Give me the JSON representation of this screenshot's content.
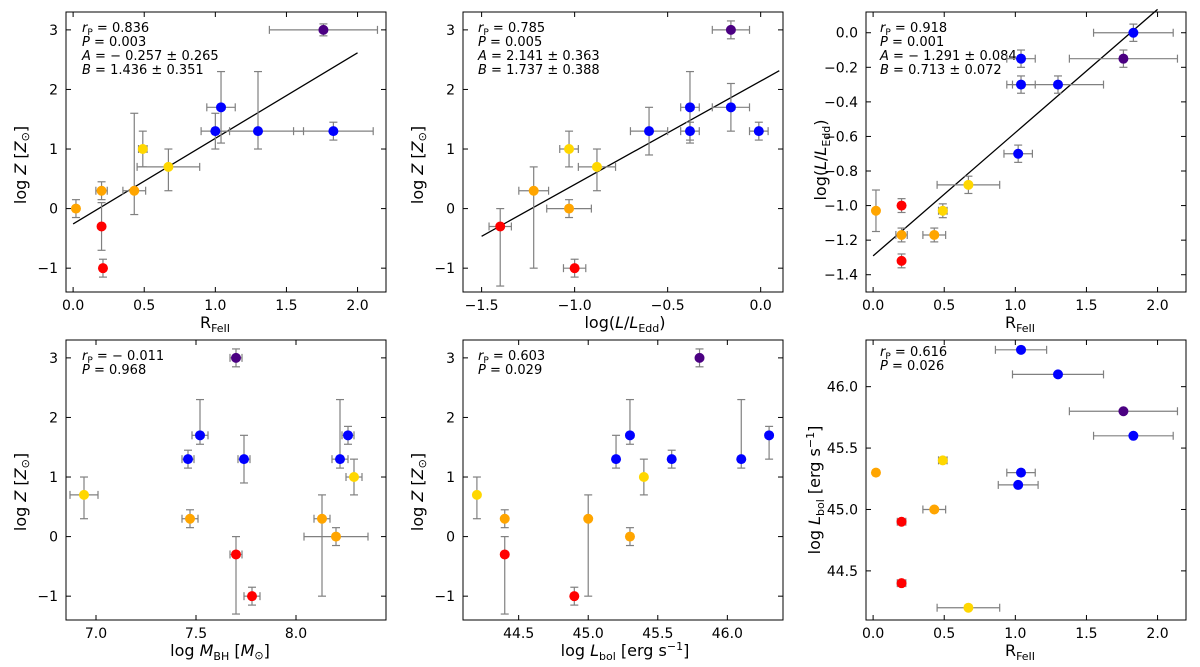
{
  "colors": {
    "purple": "#4b0082",
    "blue": "#0000ff",
    "yellow": "#ffd700",
    "orange": "#ffa500",
    "red": "#ff0000",
    "errorbar": "#808080",
    "fit": "#000000"
  },
  "chart_data": [
    {
      "type": "scatter",
      "xlabel": "R_FeII",
      "ylabel": "log Z [Z_sun]",
      "xlim": [
        -0.05,
        2.2
      ],
      "ylim": [
        -1.4,
        3.3
      ],
      "xticks": [
        0.0,
        0.5,
        1.0,
        1.5,
        2.0
      ],
      "xtick_labels": [
        "0.0",
        "0.5",
        "1.0",
        "1.5",
        "2.0"
      ],
      "yticks": [
        -1,
        0,
        1,
        2,
        3
      ],
      "ytick_labels": [
        "−1",
        "0",
        "1",
        "2",
        "3"
      ],
      "fit": {
        "x": [
          0.0,
          2.0
        ],
        "y": [
          -0.257,
          2.615
        ]
      },
      "annotations": [
        "rP = 0.836",
        "P = 0.003",
        "A = − 0.257 ± 0.265",
        "B = 1.436 ± 0.351"
      ],
      "points": [
        {
          "x": 1.76,
          "y": 3.0,
          "xerr": 0.38,
          "yerr": [
            0.1,
            0.1
          ],
          "color": "purple"
        },
        {
          "x": 1.04,
          "y": 1.7,
          "xerr": 0.1,
          "yerr": [
            0.6,
            0.6
          ],
          "color": "blue"
        },
        {
          "x": 1.0,
          "y": 1.3,
          "xerr": 0.1,
          "yerr": [
            0.3,
            0.3
          ],
          "color": "blue"
        },
        {
          "x": 1.3,
          "y": 1.3,
          "xerr": 0.32,
          "yerr": [
            0.3,
            1.0
          ],
          "color": "blue"
        },
        {
          "x": 1.83,
          "y": 1.3,
          "xerr": 0.28,
          "yerr": [
            0.15,
            0.15
          ],
          "color": "blue"
        },
        {
          "x": 0.49,
          "y": 1.0,
          "xerr": 0.03,
          "yerr": [
            0.3,
            0.3
          ],
          "color": "yellow"
        },
        {
          "x": 0.67,
          "y": 0.7,
          "xerr": 0.22,
          "yerr": [
            0.4,
            0.3
          ],
          "color": "yellow"
        },
        {
          "x": 0.2,
          "y": 0.3,
          "xerr": 0.04,
          "yerr": [
            0.15,
            0.15
          ],
          "color": "orange"
        },
        {
          "x": 0.43,
          "y": 0.3,
          "xerr": 0.08,
          "yerr": [
            0.4,
            1.3
          ],
          "color": "orange"
        },
        {
          "x": 0.02,
          "y": 0.0,
          "xerr": 0.0,
          "yerr": [
            0.15,
            0.15
          ],
          "color": "orange"
        },
        {
          "x": 0.2,
          "y": -0.3,
          "xerr": 0.0,
          "yerr": [
            0.4,
            0.4
          ],
          "color": "red"
        },
        {
          "x": 0.21,
          "y": -1.0,
          "xerr": 0.0,
          "yerr": [
            0.15,
            0.15
          ],
          "color": "red"
        }
      ]
    },
    {
      "type": "scatter",
      "xlabel": "log(L/L_Edd)",
      "ylabel": "log Z [Z_sun]",
      "xlim": [
        -1.6,
        0.12
      ],
      "ylim": [
        -1.4,
        3.3
      ],
      "xticks": [
        -1.5,
        -1.0,
        -0.5,
        0.0
      ],
      "xtick_labels": [
        "−1.5",
        "−1.0",
        "−0.5",
        "0.0"
      ],
      "yticks": [
        -1,
        0,
        1,
        2,
        3
      ],
      "ytick_labels": [
        "−1",
        "0",
        "1",
        "2",
        "3"
      ],
      "fit": {
        "x": [
          -1.5,
          0.1
        ],
        "y": [
          -0.465,
          2.314
        ]
      },
      "annotations": [
        "rP = 0.785",
        "P = 0.005",
        "A = 2.141 ± 0.363",
        "B = 1.737 ± 0.388"
      ],
      "points": [
        {
          "x": -0.16,
          "y": 3.0,
          "xerr": 0.1,
          "yerr": [
            0.15,
            0.15
          ],
          "color": "purple"
        },
        {
          "x": -0.38,
          "y": 1.7,
          "xerr": 0.05,
          "yerr": [
            0.6,
            0.6
          ],
          "color": "blue"
        },
        {
          "x": -0.16,
          "y": 1.7,
          "xerr": 0.1,
          "yerr": [
            0.4,
            0.4
          ],
          "color": "blue"
        },
        {
          "x": -0.6,
          "y": 1.3,
          "xerr": 0.1,
          "yerr": [
            0.4,
            0.4
          ],
          "color": "blue"
        },
        {
          "x": -0.38,
          "y": 1.3,
          "xerr": 0.05,
          "yerr": [
            0.15,
            0.15
          ],
          "color": "blue"
        },
        {
          "x": -0.01,
          "y": 1.3,
          "xerr": 0.05,
          "yerr": [
            0.15,
            0.15
          ],
          "color": "blue"
        },
        {
          "x": -1.03,
          "y": 1.0,
          "xerr": 0.05,
          "yerr": [
            0.3,
            0.3
          ],
          "color": "yellow"
        },
        {
          "x": -0.88,
          "y": 0.7,
          "xerr": 0.1,
          "yerr": [
            0.4,
            0.3
          ],
          "color": "yellow"
        },
        {
          "x": -1.22,
          "y": 0.3,
          "xerr": 0.08,
          "yerr": [
            1.3,
            0.4
          ],
          "color": "orange"
        },
        {
          "x": -1.03,
          "y": 0.0,
          "xerr": 0.12,
          "yerr": [
            0.15,
            0.15
          ],
          "color": "orange"
        },
        {
          "x": -1.4,
          "y": -0.3,
          "xerr": 0.06,
          "yerr": [
            1.0,
            0.3
          ],
          "color": "red"
        },
        {
          "x": -1.0,
          "y": -1.0,
          "xerr": 0.06,
          "yerr": [
            0.15,
            0.15
          ],
          "color": "red"
        }
      ]
    },
    {
      "type": "scatter",
      "xlabel": "R_FeII",
      "ylabel": "log(L/L_Edd)",
      "xlim": [
        -0.05,
        2.2
      ],
      "ylim": [
        -1.5,
        0.12
      ],
      "xticks": [
        0.0,
        0.5,
        1.0,
        1.5,
        2.0
      ],
      "xtick_labels": [
        "0.0",
        "0.5",
        "1.0",
        "1.5",
        "2.0"
      ],
      "yticks": [
        -1.4,
        -1.2,
        -1.0,
        -0.8,
        -0.6,
        -0.4,
        -0.2,
        0.0
      ],
      "ytick_labels": [
        "−1.4",
        "−1.2",
        "−1.0",
        "−0.8",
        "−0.6",
        "−0.4",
        "−0.2",
        "0.0"
      ],
      "fit": {
        "x": [
          0.0,
          2.0
        ],
        "y": [
          -1.291,
          0.135
        ]
      },
      "annotations": [
        "rP = 0.918",
        "P = 0.001",
        "A = − 1.291 ± 0.084",
        "B = 0.713 ± 0.072"
      ],
      "points": [
        {
          "x": 1.83,
          "y": 0.0,
          "xerr": 0.28,
          "yerr": [
            0.05,
            0.05
          ],
          "color": "blue"
        },
        {
          "x": 1.76,
          "y": -0.15,
          "xerr": 0.38,
          "yerr": [
            0.05,
            0.05
          ],
          "color": "purple"
        },
        {
          "x": 1.04,
          "y": -0.15,
          "xerr": 0.1,
          "yerr": [
            0.05,
            0.05
          ],
          "color": "blue"
        },
        {
          "x": 1.04,
          "y": -0.3,
          "xerr": 0.1,
          "yerr": [
            0.05,
            0.05
          ],
          "color": "blue"
        },
        {
          "x": 1.3,
          "y": -0.3,
          "xerr": 0.32,
          "yerr": [
            0.05,
            0.05
          ],
          "color": "blue"
        },
        {
          "x": 1.02,
          "y": -0.7,
          "xerr": 0.1,
          "yerr": [
            0.05,
            0.05
          ],
          "color": "blue"
        },
        {
          "x": 0.67,
          "y": -0.88,
          "xerr": 0.22,
          "yerr": [
            0.05,
            0.05
          ],
          "color": "yellow"
        },
        {
          "x": 0.49,
          "y": -1.03,
          "xerr": 0.03,
          "yerr": [
            0.04,
            0.04
          ],
          "color": "yellow"
        },
        {
          "x": 0.02,
          "y": -1.03,
          "xerr": 0.0,
          "yerr": [
            0.12,
            0.12
          ],
          "color": "orange"
        },
        {
          "x": 0.2,
          "y": -1.0,
          "xerr": 0.0,
          "yerr": [
            0.04,
            0.04
          ],
          "color": "red"
        },
        {
          "x": 0.2,
          "y": -1.17,
          "xerr": 0.04,
          "yerr": [
            0.04,
            0.04
          ],
          "color": "orange"
        },
        {
          "x": 0.43,
          "y": -1.17,
          "xerr": 0.08,
          "yerr": [
            0.04,
            0.04
          ],
          "color": "orange"
        },
        {
          "x": 0.2,
          "y": -1.32,
          "xerr": 0.0,
          "yerr": [
            0.04,
            0.04
          ],
          "color": "red"
        }
      ]
    },
    {
      "type": "scatter",
      "xlabel": "log M_BH [M_sun]",
      "ylabel": "log Z [Z_sun]",
      "xlim": [
        6.85,
        8.45
      ],
      "ylim": [
        -1.4,
        3.3
      ],
      "xticks": [
        7.0,
        7.5,
        8.0
      ],
      "xtick_labels": [
        "7.0",
        "7.5",
        "8.0"
      ],
      "yticks": [
        -1,
        0,
        1,
        2,
        3
      ],
      "ytick_labels": [
        "−1",
        "0",
        "1",
        "2",
        "3"
      ],
      "annotations": [
        "rP = − 0.011",
        "P = 0.968"
      ],
      "points": [
        {
          "x": 7.7,
          "y": 3.0,
          "xerr": 0.03,
          "yerr": [
            0.15,
            0.15
          ],
          "color": "purple"
        },
        {
          "x": 7.52,
          "y": 1.7,
          "xerr": 0.04,
          "yerr": [
            0.15,
            0.6
          ],
          "color": "blue"
        },
        {
          "x": 8.26,
          "y": 1.7,
          "xerr": 0.03,
          "yerr": [
            0.15,
            0.15
          ],
          "color": "blue"
        },
        {
          "x": 7.46,
          "y": 1.3,
          "xerr": 0.03,
          "yerr": [
            0.15,
            0.15
          ],
          "color": "blue"
        },
        {
          "x": 7.74,
          "y": 1.3,
          "xerr": 0.03,
          "yerr": [
            0.4,
            0.4
          ],
          "color": "blue"
        },
        {
          "x": 8.22,
          "y": 1.3,
          "xerr": 0.04,
          "yerr": [
            0.15,
            1.0
          ],
          "color": "blue"
        },
        {
          "x": 8.29,
          "y": 1.0,
          "xerr": 0.04,
          "yerr": [
            0.3,
            0.3
          ],
          "color": "yellow"
        },
        {
          "x": 6.94,
          "y": 0.7,
          "xerr": 0.07,
          "yerr": [
            0.4,
            0.3
          ],
          "color": "yellow"
        },
        {
          "x": 7.47,
          "y": 0.3,
          "xerr": 0.04,
          "yerr": [
            0.15,
            0.15
          ],
          "color": "orange"
        },
        {
          "x": 8.13,
          "y": 0.3,
          "xerr": 0.04,
          "yerr": [
            1.3,
            0.4
          ],
          "color": "orange"
        },
        {
          "x": 8.2,
          "y": 0.0,
          "xerr": 0.16,
          "yerr": [
            0.15,
            0.15
          ],
          "color": "orange"
        },
        {
          "x": 7.7,
          "y": -0.3,
          "xerr": 0.03,
          "yerr": [
            1.0,
            0.3
          ],
          "color": "red"
        },
        {
          "x": 7.78,
          "y": -1.0,
          "xerr": 0.04,
          "yerr": [
            0.15,
            0.15
          ],
          "color": "red"
        }
      ]
    },
    {
      "type": "scatter",
      "xlabel": "log L_bol [erg s^-1]",
      "ylabel": "log Z [Z_sun]",
      "xlim": [
        44.1,
        46.4
      ],
      "ylim": [
        -1.4,
        3.3
      ],
      "xticks": [
        44.5,
        45.0,
        45.5,
        46.0
      ],
      "xtick_labels": [
        "44.5",
        "45.0",
        "45.5",
        "46.0"
      ],
      "yticks": [
        -1,
        0,
        1,
        2,
        3
      ],
      "ytick_labels": [
        "−1",
        "0",
        "1",
        "2",
        "3"
      ],
      "annotations": [
        "rP = 0.603",
        "P = 0.029"
      ],
      "points": [
        {
          "x": 45.8,
          "y": 3.0,
          "xerr": 0.0,
          "yerr": [
            0.15,
            0.15
          ],
          "color": "purple"
        },
        {
          "x": 45.3,
          "y": 1.7,
          "xerr": 0.0,
          "yerr": [
            0.15,
            0.6
          ],
          "color": "blue"
        },
        {
          "x": 46.3,
          "y": 1.7,
          "xerr": 0.0,
          "yerr": [
            0.4,
            0.15
          ],
          "color": "blue"
        },
        {
          "x": 45.2,
          "y": 1.3,
          "xerr": 0.0,
          "yerr": [
            0.15,
            0.4
          ],
          "color": "blue"
        },
        {
          "x": 45.6,
          "y": 1.3,
          "xerr": 0.0,
          "yerr": [
            0.15,
            0.15
          ],
          "color": "blue"
        },
        {
          "x": 46.1,
          "y": 1.3,
          "xerr": 0.0,
          "yerr": [
            0.15,
            1.0
          ],
          "color": "blue"
        },
        {
          "x": 45.4,
          "y": 1.0,
          "xerr": 0.0,
          "yerr": [
            0.3,
            0.3
          ],
          "color": "yellow"
        },
        {
          "x": 44.2,
          "y": 0.7,
          "xerr": 0.0,
          "yerr": [
            0.4,
            0.3
          ],
          "color": "yellow"
        },
        {
          "x": 44.4,
          "y": 0.3,
          "xerr": 0.0,
          "yerr": [
            0.15,
            0.15
          ],
          "color": "orange"
        },
        {
          "x": 45.0,
          "y": 0.3,
          "xerr": 0.0,
          "yerr": [
            1.3,
            0.4
          ],
          "color": "orange"
        },
        {
          "x": 45.3,
          "y": 0.0,
          "xerr": 0.0,
          "yerr": [
            0.15,
            0.15
          ],
          "color": "orange"
        },
        {
          "x": 44.4,
          "y": -0.3,
          "xerr": 0.0,
          "yerr": [
            1.0,
            0.3
          ],
          "color": "red"
        },
        {
          "x": 44.9,
          "y": -1.0,
          "xerr": 0.0,
          "yerr": [
            0.15,
            0.15
          ],
          "color": "red"
        }
      ]
    },
    {
      "type": "scatter",
      "xlabel": "R_FeII",
      "ylabel": "log L_bol [erg s^-1]",
      "xlim": [
        -0.05,
        2.2
      ],
      "ylim": [
        44.1,
        46.38
      ],
      "xticks": [
        0.0,
        0.5,
        1.0,
        1.5,
        2.0
      ],
      "xtick_labels": [
        "0.0",
        "0.5",
        "1.0",
        "1.5",
        "2.0"
      ],
      "yticks": [
        44.5,
        45.0,
        45.5,
        46.0
      ],
      "ytick_labels": [
        "44.5",
        "45.0",
        "45.5",
        "46.0"
      ],
      "annotations": [
        "rP = 0.616",
        "P = 0.026"
      ],
      "points": [
        {
          "x": 1.04,
          "y": 46.3,
          "xerr": 0.18,
          "yerr": [
            0.0,
            0.0
          ],
          "color": "blue"
        },
        {
          "x": 1.3,
          "y": 46.1,
          "xerr": 0.32,
          "yerr": [
            0.0,
            0.0
          ],
          "color": "blue"
        },
        {
          "x": 1.76,
          "y": 45.8,
          "xerr": 0.38,
          "yerr": [
            0.0,
            0.0
          ],
          "color": "purple"
        },
        {
          "x": 1.83,
          "y": 45.6,
          "xerr": 0.28,
          "yerr": [
            0.0,
            0.0
          ],
          "color": "blue"
        },
        {
          "x": 0.49,
          "y": 45.4,
          "xerr": 0.03,
          "yerr": [
            0.0,
            0.0
          ],
          "color": "yellow"
        },
        {
          "x": 0.02,
          "y": 45.3,
          "xerr": 0.0,
          "yerr": [
            0.0,
            0.0
          ],
          "color": "orange"
        },
        {
          "x": 1.04,
          "y": 45.3,
          "xerr": 0.1,
          "yerr": [
            0.0,
            0.0
          ],
          "color": "blue"
        },
        {
          "x": 1.02,
          "y": 45.2,
          "xerr": 0.14,
          "yerr": [
            0.0,
            0.0
          ],
          "color": "blue"
        },
        {
          "x": 0.43,
          "y": 45.0,
          "xerr": 0.08,
          "yerr": [
            0.0,
            0.0
          ],
          "color": "orange"
        },
        {
          "x": 0.2,
          "y": 44.9,
          "xerr": 0.03,
          "yerr": [
            0.0,
            0.0
          ],
          "color": "red"
        },
        {
          "x": 0.2,
          "y": 44.4,
          "xerr": 0.03,
          "yerr": [
            0.0,
            0.0
          ],
          "color": "red"
        },
        {
          "x": 0.67,
          "y": 44.2,
          "xerr": 0.22,
          "yerr": [
            0.0,
            0.0
          ],
          "color": "yellow"
        }
      ]
    }
  ]
}
